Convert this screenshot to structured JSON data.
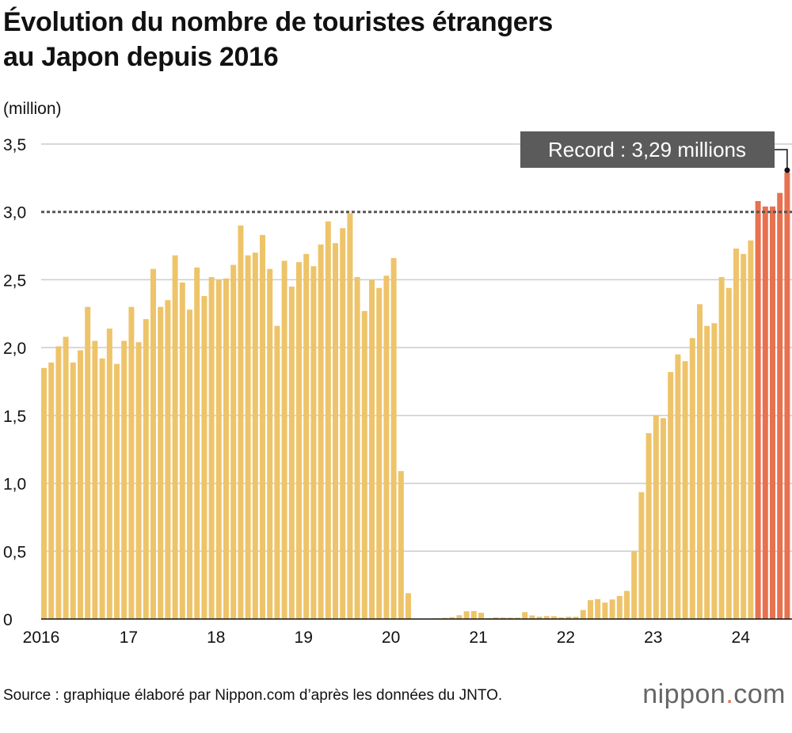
{
  "chart_data": {
    "type": "bar",
    "title": "Évolution du nombre de touristes étrangers au Japon depuis 2016",
    "title_lines": [
      "Évolution du nombre de touristes étrangers",
      "au Japon depuis 2016"
    ],
    "ylabel": "(million)",
    "ylim": [
      0,
      3.5
    ],
    "yticks": [
      "0",
      "0,5",
      "1,0",
      "1,5",
      "2,0",
      "2,5",
      "3,0",
      "3,5"
    ],
    "grid": true,
    "x_tick_labels": [
      "2016",
      "17",
      "18",
      "19",
      "20",
      "21",
      "22",
      "23",
      "24"
    ],
    "reference_line": 3.0,
    "annotation": "Record : 3,29 millions",
    "colors": {
      "normal": "#eec46a",
      "highlight": "#e8714f",
      "annotation_bg": "#5b5b5b",
      "grid": "#cccccc"
    },
    "highlight_from_index": 98,
    "values": [
      1.85,
      1.89,
      2.01,
      2.08,
      1.89,
      1.98,
      2.3,
      2.05,
      1.92,
      2.14,
      1.88,
      2.05,
      2.3,
      2.04,
      2.21,
      2.58,
      2.3,
      2.35,
      2.68,
      2.48,
      2.28,
      2.59,
      2.38,
      2.52,
      2.5,
      2.51,
      2.61,
      2.9,
      2.68,
      2.7,
      2.83,
      2.58,
      2.16,
      2.64,
      2.45,
      2.63,
      2.69,
      2.6,
      2.76,
      2.93,
      2.77,
      2.88,
      2.99,
      2.52,
      2.27,
      2.5,
      2.44,
      2.53,
      2.66,
      1.09,
      0.19,
      0.003,
      0.002,
      0.003,
      0.004,
      0.009,
      0.014,
      0.028,
      0.057,
      0.059,
      0.046,
      0.007,
      0.012,
      0.011,
      0.01,
      0.01,
      0.051,
      0.026,
      0.018,
      0.022,
      0.021,
      0.012,
      0.017,
      0.017,
      0.066,
      0.139,
      0.147,
      0.121,
      0.144,
      0.17,
      0.207,
      0.499,
      0.935,
      1.37,
      1.5,
      1.48,
      1.82,
      1.95,
      1.9,
      2.07,
      2.32,
      2.16,
      2.18,
      2.52,
      2.44,
      2.73,
      2.69,
      2.79,
      3.08,
      3.04,
      3.04,
      3.14,
      3.29
    ]
  },
  "source": "Source : graphique élaboré par Nippon.com d’après les données du JNTO.",
  "logo": {
    "name": "nippon",
    "dot": ".",
    "tld": "com"
  }
}
